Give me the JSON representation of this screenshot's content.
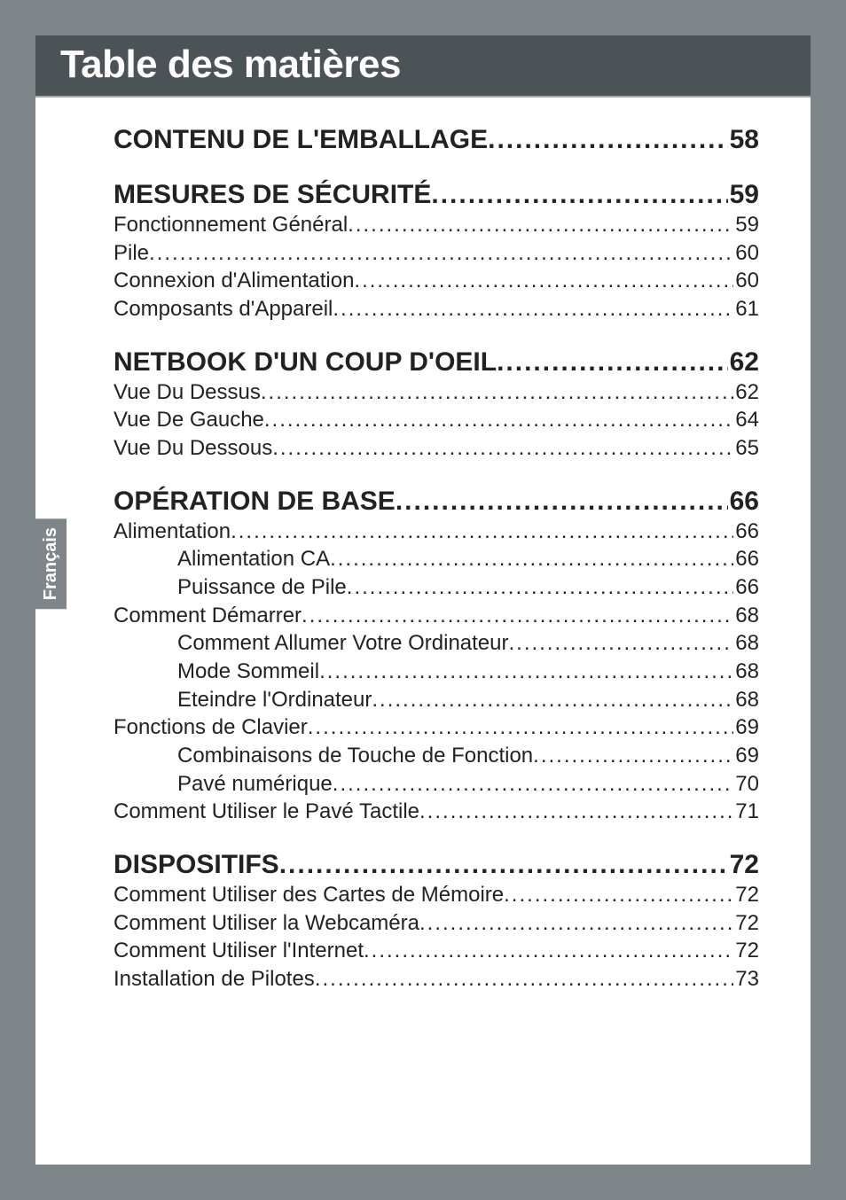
{
  "header": {
    "title": "Table des matières"
  },
  "side_tab": "Français",
  "leader_dots": "..............................................................................................................................................",
  "toc": [
    {
      "heading": {
        "label": "CONTENU DE L'EMBALLAGE",
        "page": "58"
      },
      "items": []
    },
    {
      "heading": {
        "label": "MESURES DE SÉCURITÉ",
        "page": "59"
      },
      "items": [
        {
          "level": 2,
          "label": "Fonctionnement Général",
          "page": "59"
        },
        {
          "level": 2,
          "label": "Pile",
          "page": "60"
        },
        {
          "level": 2,
          "label": "Connexion d'Alimentation",
          "page": "60"
        },
        {
          "level": 2,
          "label": "Composants d'Appareil",
          "page": "61"
        }
      ]
    },
    {
      "heading": {
        "label": "NETBOOK D'UN COUP D'OEIL",
        "page": "62"
      },
      "items": [
        {
          "level": 2,
          "label": "Vue Du Dessus",
          "page": "62"
        },
        {
          "level": 2,
          "label": "Vue De Gauche",
          "page": "64"
        },
        {
          "level": 2,
          "label": "Vue Du Dessous",
          "page": "65"
        }
      ]
    },
    {
      "heading": {
        "label": "OPÉRATION DE BASE",
        "page": "66"
      },
      "items": [
        {
          "level": 2,
          "label": "Alimentation",
          "page": "66"
        },
        {
          "level": 3,
          "label": "Alimentation CA",
          "page": "66"
        },
        {
          "level": 3,
          "label": "Puissance de Pile",
          "page": "66"
        },
        {
          "level": 2,
          "label": "Comment Démarrer",
          "page": "68"
        },
        {
          "level": 3,
          "label": "Comment Allumer Votre Ordinateur",
          "page": "68"
        },
        {
          "level": 3,
          "label": "Mode Sommeil",
          "page": "68"
        },
        {
          "level": 3,
          "label": "Eteindre l'Ordinateur",
          "page": "68"
        },
        {
          "level": 2,
          "label": "Fonctions de Clavier",
          "page": "69"
        },
        {
          "level": 3,
          "label": "Combinaisons de Touche de Fonction",
          "page": "69"
        },
        {
          "level": 3,
          "label": "Pavé numérique",
          "page": "70"
        },
        {
          "level": 2,
          "label": "Comment Utiliser le Pavé Tactile",
          "page": "71"
        }
      ]
    },
    {
      "heading": {
        "label": "DISPOSITIFS",
        "page": "72"
      },
      "items": [
        {
          "level": 2,
          "label": "Comment Utiliser des Cartes de Mémoire",
          "page": "72"
        },
        {
          "level": 2,
          "label": "Comment Utiliser la Webcaméra",
          "page": "72"
        },
        {
          "level": 2,
          "label": "Comment Utiliser l'Internet",
          "page": "72"
        },
        {
          "level": 2,
          "label": "Installation de Pilotes",
          "page": "73"
        }
      ]
    }
  ]
}
